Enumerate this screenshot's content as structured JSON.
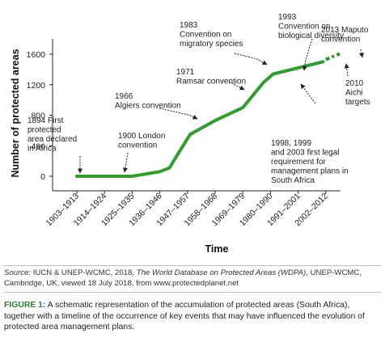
{
  "chart_data": {
    "type": "line",
    "ylabel": "Number of protected areas",
    "xlabel": "Time",
    "categories": [
      "1903–1913",
      "1914–1924",
      "1925–1935",
      "1936–1946",
      "1947–1957",
      "1958–1968",
      "1969–1979",
      "1980–1990",
      "1991–2001",
      "2002–2012"
    ],
    "yticks": [
      0,
      400,
      800,
      1200,
      1600
    ],
    "ylim": [
      0,
      1750
    ],
    "color": "#2e9e2e",
    "series": [
      {
        "values_solid": [
          [
            0,
            0
          ],
          [
            1,
            0
          ],
          [
            2,
            0
          ],
          [
            3,
            60
          ],
          [
            3.35,
            110
          ],
          [
            3.6,
            260
          ],
          [
            4.1,
            550
          ],
          [
            5,
            730
          ],
          [
            6,
            900
          ],
          [
            6.75,
            1230
          ],
          [
            7.1,
            1340
          ],
          [
            8,
            1420
          ],
          [
            8.9,
            1500
          ]
        ],
        "values_dashed": [
          [
            9,
            1530
          ],
          [
            9.3,
            1575
          ]
        ],
        "values_dashed_end": [
          [
            9.4,
            1585
          ],
          [
            9.55,
            1620
          ]
        ]
      }
    ],
    "annotations": [
      {
        "lines": [
          "1894 First",
          "protected",
          "area declared",
          "in Africa"
        ]
      },
      {
        "lines": [
          "1900 London",
          "convention"
        ]
      },
      {
        "lines": [
          "1966",
          "Algiers convention"
        ]
      },
      {
        "lines": [
          "1971",
          "Ramsar convention"
        ]
      },
      {
        "lines": [
          "1983",
          "Convention on",
          "migratory species"
        ]
      },
      {
        "lines": [
          "1993",
          "Convention on",
          "biological diversity"
        ]
      },
      {
        "lines": [
          "2013 Maputo",
          "convention"
        ]
      },
      {
        "lines": [
          "2010",
          "Aichi",
          "targets"
        ]
      },
      {
        "lines": [
          "1998, 1999",
          "and 2003 first legal",
          "requirement for",
          "management plans in",
          "South Africa"
        ]
      }
    ]
  },
  "source": {
    "label": "Source:",
    "prefix": "IUCN & UNEP-WCMC, 2018,",
    "title": "The World Database on Protected Areas (WDPA)",
    "suffix": ", UNEP-WCMC, Cambridge, UK, viewed 18 July 2018, from www.protectedplanet.net"
  },
  "caption": {
    "label": "FIGURE 1:",
    "text": "A schematic representation of the accumulation of protected areas (South Africa), together with a timeline of the occurrence of key events that may have influenced the evolution of protected area management plans."
  }
}
